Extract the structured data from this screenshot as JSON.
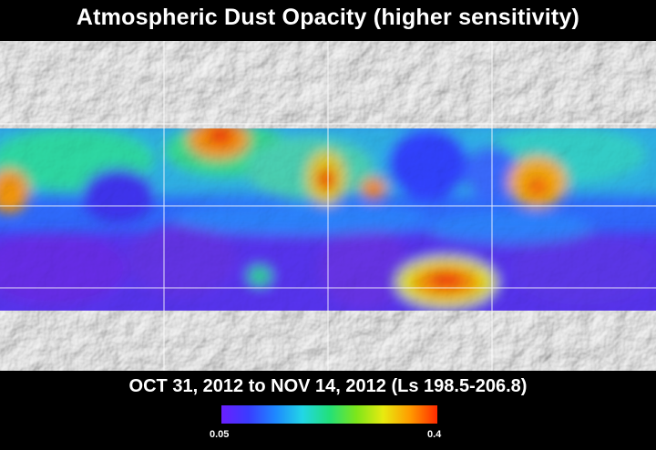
{
  "title": "Atmospheric Dust Opacity (higher sensitivity)",
  "date_range": "OCT 31, 2012 to NOV 14, 2012 (Ls 198.5-206.8)",
  "colorbar": {
    "min_label": "0.05",
    "max_label": "0.4",
    "colors": [
      "#6a1fff",
      "#3a3cff",
      "#1e88ff",
      "#22d6e6",
      "#22e07a",
      "#7de61a",
      "#e8ea10",
      "#ff9a00",
      "#ff2a00"
    ]
  },
  "map": {
    "terrain_color": "#c4c4c4",
    "gridline_color": "#ffffff"
  }
}
